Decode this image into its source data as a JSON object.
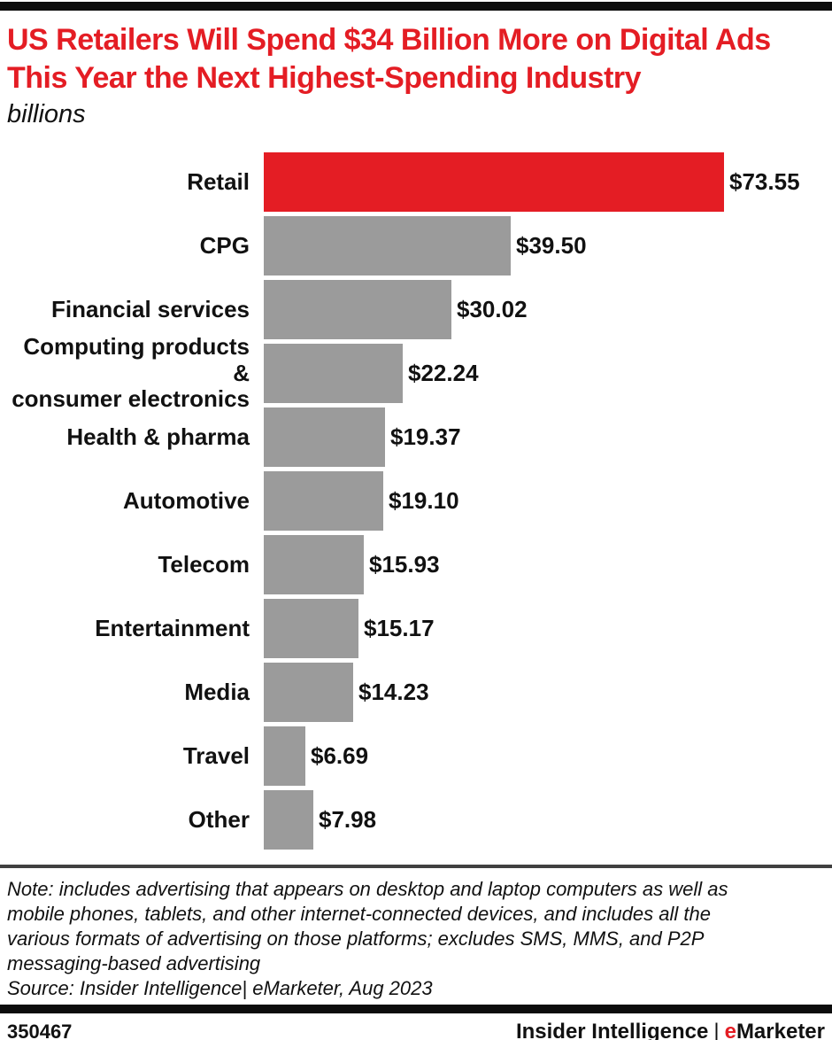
{
  "header": {
    "title_line1": "US Retailers Will Spend $34 Billion More on Digital Ads",
    "title_line2": "This Year the Next Highest-Spending Industry",
    "subtitle": "billions"
  },
  "chart_data": {
    "type": "bar",
    "orientation": "horizontal",
    "title": "US Retailers Will Spend $34 Billion More on Digital Ads This Year the Next Highest-Spending Industry",
    "unit_label": "billions",
    "categories": [
      "Retail",
      "CPG",
      "Financial services",
      "Computing products &\nconsumer electronics",
      "Health & pharma",
      "Automotive",
      "Telecom",
      "Entertainment",
      "Media",
      "Travel",
      "Other"
    ],
    "values": [
      73.55,
      39.5,
      30.02,
      22.24,
      19.37,
      19.1,
      15.93,
      15.17,
      14.23,
      6.69,
      7.98
    ],
    "value_labels": [
      "$73.55",
      "$39.50",
      "$30.02",
      "$22.24",
      "$19.37",
      "$19.10",
      "$15.93",
      "$15.17",
      "$14.23",
      "$6.69",
      "$7.98"
    ],
    "xlim": [
      0,
      73.55
    ],
    "grid": false,
    "legend": "none",
    "highlight_index": 0,
    "highlight_color": "#e41d24",
    "bar_color": "#9b9b9b"
  },
  "note": {
    "text": "Note: includes advertising that appears on desktop and laptop computers as well as\nmobile phones, tablets, and other internet-connected devices, and includes all the\nvarious formats of advertising on those platforms; excludes SMS, MMS, and P2P\nmessaging-based advertising",
    "source": "Source: Insider Intelligence| eMarketer, Aug 2023"
  },
  "footer": {
    "chart_id": "350467",
    "brand_left": "Insider Intelligence",
    "brand_separator": "|",
    "brand_e": "e",
    "brand_rest": "Marketer"
  },
  "colors": {
    "accent_red": "#e41d24",
    "bar_gray": "#9b9b9b",
    "rule_black": "#0d0d0d",
    "note_rule_gray": "#404040"
  }
}
